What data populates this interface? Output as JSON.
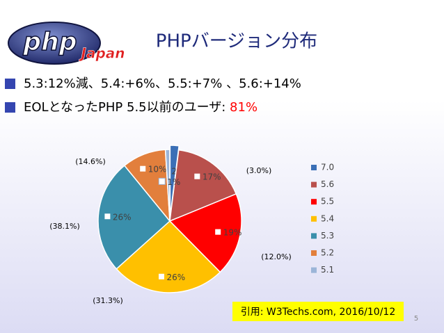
{
  "logo": {
    "text": "php",
    "subtext": "Japan"
  },
  "title": "PHPバージョン分布",
  "bullets": [
    "5.3:12%減、5.4:+6%、5.5:+7% 、5.6:+14%",
    "EOLとなったPHP 5.5以前のユーザ: "
  ],
  "highlight": "81%",
  "chart_data": {
    "type": "pie",
    "categories": [
      "7.0",
      "5.6",
      "5.5",
      "5.4",
      "5.3",
      "5.2",
      "5.1"
    ],
    "values": [
      2,
      17,
      19,
      26,
      26,
      10,
      1
    ],
    "value_labels": [
      "2%",
      "17%",
      "19%",
      "26%",
      "26%",
      "10%",
      "1%"
    ],
    "colors": [
      "#3b6fb6",
      "#b9504c",
      "#ff0000",
      "#ffc000",
      "#3a8fab",
      "#e27f3c",
      "#9bb5d8"
    ],
    "legend": "right",
    "annotations": [
      "(3.0%)",
      "(12.0%)",
      "(31.3%)",
      "(38.1%)",
      "(14.6%)"
    ]
  },
  "citation": "引用: W3Techs.com, 2016/10/12",
  "page_number": "5"
}
